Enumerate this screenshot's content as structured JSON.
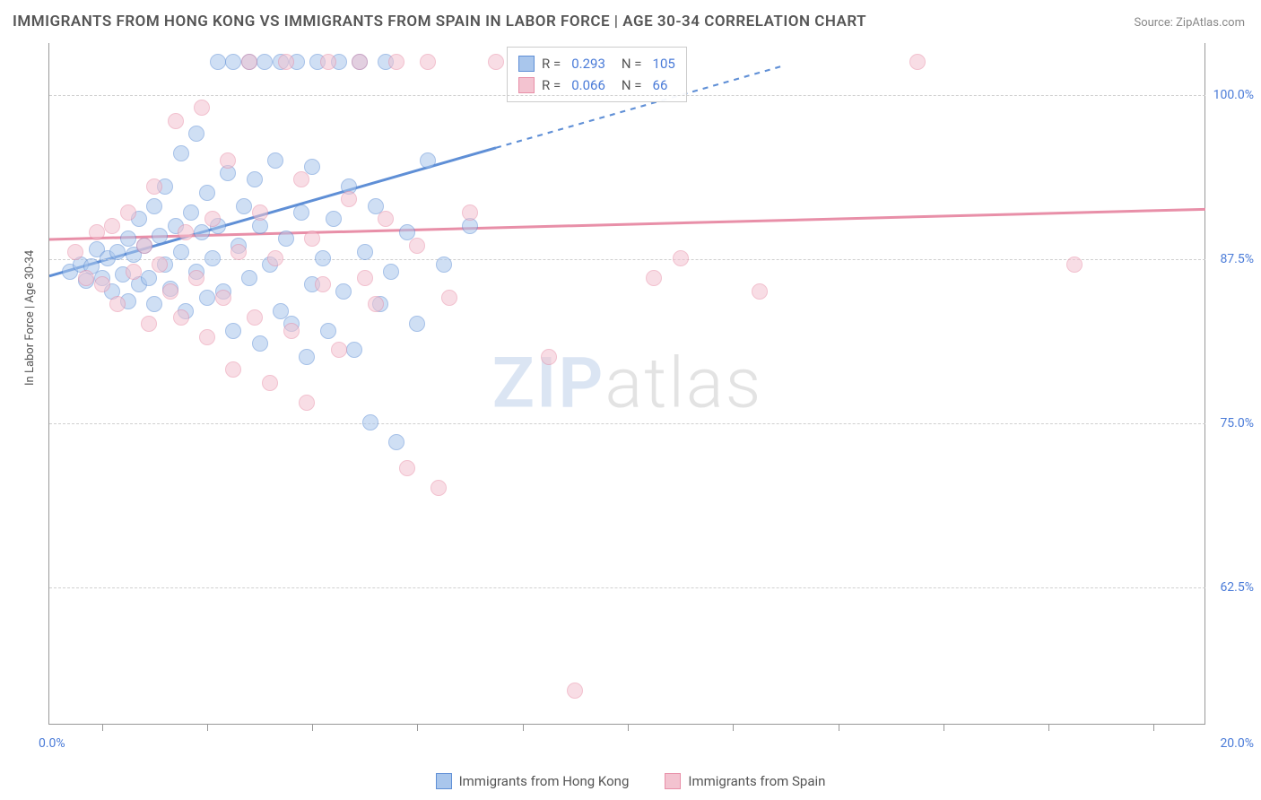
{
  "chart": {
    "type": "scatter",
    "title": "IMMIGRANTS FROM HONG KONG VS IMMIGRANTS FROM SPAIN IN LABOR FORCE | AGE 30-34 CORRELATION CHART",
    "source": "Source: ZipAtlas.com",
    "ylabel": "In Labor Force | Age 30-34",
    "watermark_zip": "ZIP",
    "watermark_atlas": "atlas",
    "plot_bg": "#ffffff",
    "grid_color": "#d0d0d0",
    "axis_color": "#999999",
    "title_color": "#555555",
    "value_text_color": "#4a7bd8",
    "x_domain": [
      -1,
      21
    ],
    "y_domain": [
      52,
      104
    ],
    "x_ticks": [
      0,
      2,
      4,
      6,
      8,
      10,
      12,
      14,
      16,
      18,
      20
    ],
    "y_gridlines": [
      62.5,
      75.0,
      87.5,
      100.0
    ],
    "y_tick_labels": [
      "62.5%",
      "75.0%",
      "87.5%",
      "100.0%"
    ],
    "x_left_label": "0.0%",
    "x_right_label": "20.0%",
    "point_radius": 9,
    "point_opacity": 0.55,
    "series": [
      {
        "key": "hk",
        "name": "Immigrants from Hong Kong",
        "fill": "#a9c6ec",
        "stroke": "#5f8fd6",
        "r_label": "R =",
        "r_value": "0.293",
        "n_label": "N =",
        "n_value": "105",
        "trend": {
          "x1": -1,
          "y1": 86.2,
          "x2_solid": 7.5,
          "y2_solid": 96.0,
          "x2_dash": 13.0,
          "y2_dash": 102.3,
          "width": 3
        },
        "points": [
          [
            -0.6,
            86.5
          ],
          [
            -0.4,
            87.0
          ],
          [
            -0.3,
            85.8
          ],
          [
            -0.2,
            86.9
          ],
          [
            -0.1,
            88.2
          ],
          [
            0.0,
            86.0
          ],
          [
            0.1,
            87.5
          ],
          [
            0.2,
            85.0
          ],
          [
            0.3,
            88.0
          ],
          [
            0.4,
            86.3
          ],
          [
            0.5,
            89.0
          ],
          [
            0.5,
            84.2
          ],
          [
            0.6,
            87.8
          ],
          [
            0.7,
            90.5
          ],
          [
            0.7,
            85.5
          ],
          [
            0.8,
            88.5
          ],
          [
            0.9,
            86.0
          ],
          [
            1.0,
            91.5
          ],
          [
            1.0,
            84.0
          ],
          [
            1.1,
            89.2
          ],
          [
            1.2,
            87.0
          ],
          [
            1.2,
            93.0
          ],
          [
            1.3,
            85.2
          ],
          [
            1.4,
            90.0
          ],
          [
            1.5,
            88.0
          ],
          [
            1.5,
            95.5
          ],
          [
            1.6,
            83.5
          ],
          [
            1.7,
            91.0
          ],
          [
            1.8,
            86.5
          ],
          [
            1.8,
            97.0
          ],
          [
            1.9,
            89.5
          ],
          [
            2.0,
            84.5
          ],
          [
            2.0,
            92.5
          ],
          [
            2.1,
            87.5
          ],
          [
            2.2,
            102.5
          ],
          [
            2.2,
            90.0
          ],
          [
            2.3,
            85.0
          ],
          [
            2.4,
            94.0
          ],
          [
            2.5,
            102.5
          ],
          [
            2.5,
            82.0
          ],
          [
            2.6,
            88.5
          ],
          [
            2.7,
            91.5
          ],
          [
            2.8,
            102.5
          ],
          [
            2.8,
            86.0
          ],
          [
            2.9,
            93.5
          ],
          [
            3.0,
            81.0
          ],
          [
            3.0,
            90.0
          ],
          [
            3.1,
            102.5
          ],
          [
            3.2,
            87.0
          ],
          [
            3.3,
            95.0
          ],
          [
            3.4,
            83.5
          ],
          [
            3.4,
            102.5
          ],
          [
            3.5,
            89.0
          ],
          [
            3.6,
            82.5
          ],
          [
            3.7,
            102.5
          ],
          [
            3.8,
            91.0
          ],
          [
            3.9,
            80.0
          ],
          [
            4.0,
            85.5
          ],
          [
            4.0,
            94.5
          ],
          [
            4.1,
            102.5
          ],
          [
            4.2,
            87.5
          ],
          [
            4.3,
            82.0
          ],
          [
            4.4,
            90.5
          ],
          [
            4.5,
            102.5
          ],
          [
            4.6,
            85.0
          ],
          [
            4.7,
            93.0
          ],
          [
            4.8,
            80.5
          ],
          [
            4.9,
            102.5
          ],
          [
            5.0,
            88.0
          ],
          [
            5.1,
            75.0
          ],
          [
            5.2,
            91.5
          ],
          [
            5.3,
            84.0
          ],
          [
            5.4,
            102.5
          ],
          [
            5.5,
            86.5
          ],
          [
            5.6,
            73.5
          ],
          [
            5.8,
            89.5
          ],
          [
            6.0,
            82.5
          ],
          [
            6.2,
            95.0
          ],
          [
            6.5,
            87.0
          ],
          [
            7.0,
            90.0
          ]
        ]
      },
      {
        "key": "es",
        "name": "Immigrants from Spain",
        "fill": "#f3c3d0",
        "stroke": "#e88fa8",
        "r_label": "R =",
        "r_value": "0.066",
        "n_label": "N =",
        "n_value": "66",
        "trend": {
          "x1": -1,
          "y1": 89.0,
          "x2_solid": 21,
          "y2_solid": 91.3,
          "width": 3
        },
        "points": [
          [
            -0.5,
            88.0
          ],
          [
            -0.3,
            86.0
          ],
          [
            -0.1,
            89.5
          ],
          [
            0.0,
            85.5
          ],
          [
            0.2,
            90.0
          ],
          [
            0.3,
            84.0
          ],
          [
            0.5,
            91.0
          ],
          [
            0.6,
            86.5
          ],
          [
            0.8,
            88.5
          ],
          [
            0.9,
            82.5
          ],
          [
            1.0,
            93.0
          ],
          [
            1.1,
            87.0
          ],
          [
            1.3,
            85.0
          ],
          [
            1.4,
            98.0
          ],
          [
            1.5,
            83.0
          ],
          [
            1.6,
            89.5
          ],
          [
            1.8,
            86.0
          ],
          [
            1.9,
            99.0
          ],
          [
            2.0,
            81.5
          ],
          [
            2.1,
            90.5
          ],
          [
            2.3,
            84.5
          ],
          [
            2.4,
            95.0
          ],
          [
            2.5,
            79.0
          ],
          [
            2.6,
            88.0
          ],
          [
            2.8,
            102.5
          ],
          [
            2.9,
            83.0
          ],
          [
            3.0,
            91.0
          ],
          [
            3.2,
            78.0
          ],
          [
            3.3,
            87.5
          ],
          [
            3.5,
            102.5
          ],
          [
            3.6,
            82.0
          ],
          [
            3.8,
            93.5
          ],
          [
            3.9,
            76.5
          ],
          [
            4.0,
            89.0
          ],
          [
            4.2,
            85.5
          ],
          [
            4.3,
            102.5
          ],
          [
            4.5,
            80.5
          ],
          [
            4.7,
            92.0
          ],
          [
            4.9,
            102.5
          ],
          [
            5.0,
            86.0
          ],
          [
            5.2,
            84.0
          ],
          [
            5.4,
            90.5
          ],
          [
            5.6,
            102.5
          ],
          [
            5.8,
            71.5
          ],
          [
            6.0,
            88.5
          ],
          [
            6.2,
            102.5
          ],
          [
            6.4,
            70.0
          ],
          [
            6.6,
            84.5
          ],
          [
            7.0,
            91.0
          ],
          [
            7.5,
            102.5
          ],
          [
            8.5,
            80.0
          ],
          [
            9.0,
            54.5
          ],
          [
            10.5,
            86.0
          ],
          [
            11.0,
            87.5
          ],
          [
            12.5,
            85.0
          ],
          [
            15.5,
            102.5
          ],
          [
            18.5,
            87.0
          ]
        ]
      }
    ]
  }
}
